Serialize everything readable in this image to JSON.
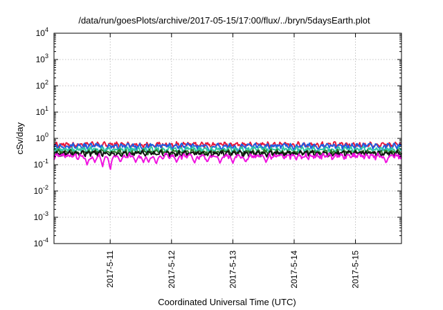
{
  "chart_data": {
    "type": "line",
    "title": "/data/run/goesPlots/archive/2017-05-15/17:00/flux/../bryn/5daysEarth.plot",
    "xlabel": "Coordinated Universal Time (UTC)",
    "ylabel": "cSv/day",
    "yscale": "log",
    "ylim": [
      0.0001,
      10000
    ],
    "xlim": [
      "2017-05-10 02:00",
      "2017-05-15 18:00"
    ],
    "grid": true,
    "x_ticks": [
      "2017-5-11",
      "2017-5-12",
      "2017-5-13",
      "2017-5-14",
      "2017-5-15"
    ],
    "y_ticks": [
      {
        "base": "10",
        "exp": "-4",
        "value": 0.0001
      },
      {
        "base": "10",
        "exp": "-3",
        "value": 0.001
      },
      {
        "base": "10",
        "exp": "-2",
        "value": 0.01
      },
      {
        "base": "10",
        "exp": "-1",
        "value": 0.1
      },
      {
        "base": "10",
        "exp": "0",
        "value": 1
      },
      {
        "base": "10",
        "exp": "1",
        "value": 10
      },
      {
        "base": "10",
        "exp": "2",
        "value": 100
      },
      {
        "base": "10",
        "exp": "3",
        "value": 1000
      },
      {
        "base": "10",
        "exp": "4",
        "value": 10000
      }
    ],
    "series": [
      {
        "color": "#e8173a",
        "baseline": 0.58,
        "dips": []
      },
      {
        "color": "#1f5de0",
        "baseline": 0.52,
        "dips": [
          {
            "x": "2017-05-10 22:00",
            "y": 0.28
          },
          {
            "x": "2017-05-11 13:00",
            "y": 0.3
          },
          {
            "x": "2017-05-12 15:00",
            "y": 0.27
          },
          {
            "x": "2017-05-13 02:00",
            "y": 0.28
          },
          {
            "x": "2017-05-15 10:00",
            "y": 0.3
          }
        ]
      },
      {
        "color": "#2ec7a6",
        "baseline": 0.38,
        "dips": []
      },
      {
        "color": "#2a7a2a",
        "baseline": 0.3,
        "dips": []
      },
      {
        "color": "#111111",
        "baseline": 0.27,
        "dips": []
      },
      {
        "color": "#f012e0",
        "baseline": 0.215,
        "dips": [
          {
            "x": "2017-05-10 15:00",
            "y": 0.09
          },
          {
            "x": "2017-05-10 18:00",
            "y": 0.12
          },
          {
            "x": "2017-05-10 21:00",
            "y": 0.08
          },
          {
            "x": "2017-05-11 00:00",
            "y": 0.053
          },
          {
            "x": "2017-05-11 04:00",
            "y": 0.12
          },
          {
            "x": "2017-05-11 10:00",
            "y": 0.12
          },
          {
            "x": "2017-05-11 13:00",
            "y": 0.12
          },
          {
            "x": "2017-05-11 15:00",
            "y": 0.12
          },
          {
            "x": "2017-05-11 18:00",
            "y": 0.1
          },
          {
            "x": "2017-05-12 02:00",
            "y": 0.12
          },
          {
            "x": "2017-05-12 09:00",
            "y": 0.11
          },
          {
            "x": "2017-05-12 14:00",
            "y": 0.12
          },
          {
            "x": "2017-05-12 19:00",
            "y": 0.11
          },
          {
            "x": "2017-05-13 00:00",
            "y": 0.11
          },
          {
            "x": "2017-05-13 05:00",
            "y": 0.12
          },
          {
            "x": "2017-05-13 13:00",
            "y": 0.12
          },
          {
            "x": "2017-05-15 12:00",
            "y": 0.11
          }
        ]
      }
    ]
  }
}
